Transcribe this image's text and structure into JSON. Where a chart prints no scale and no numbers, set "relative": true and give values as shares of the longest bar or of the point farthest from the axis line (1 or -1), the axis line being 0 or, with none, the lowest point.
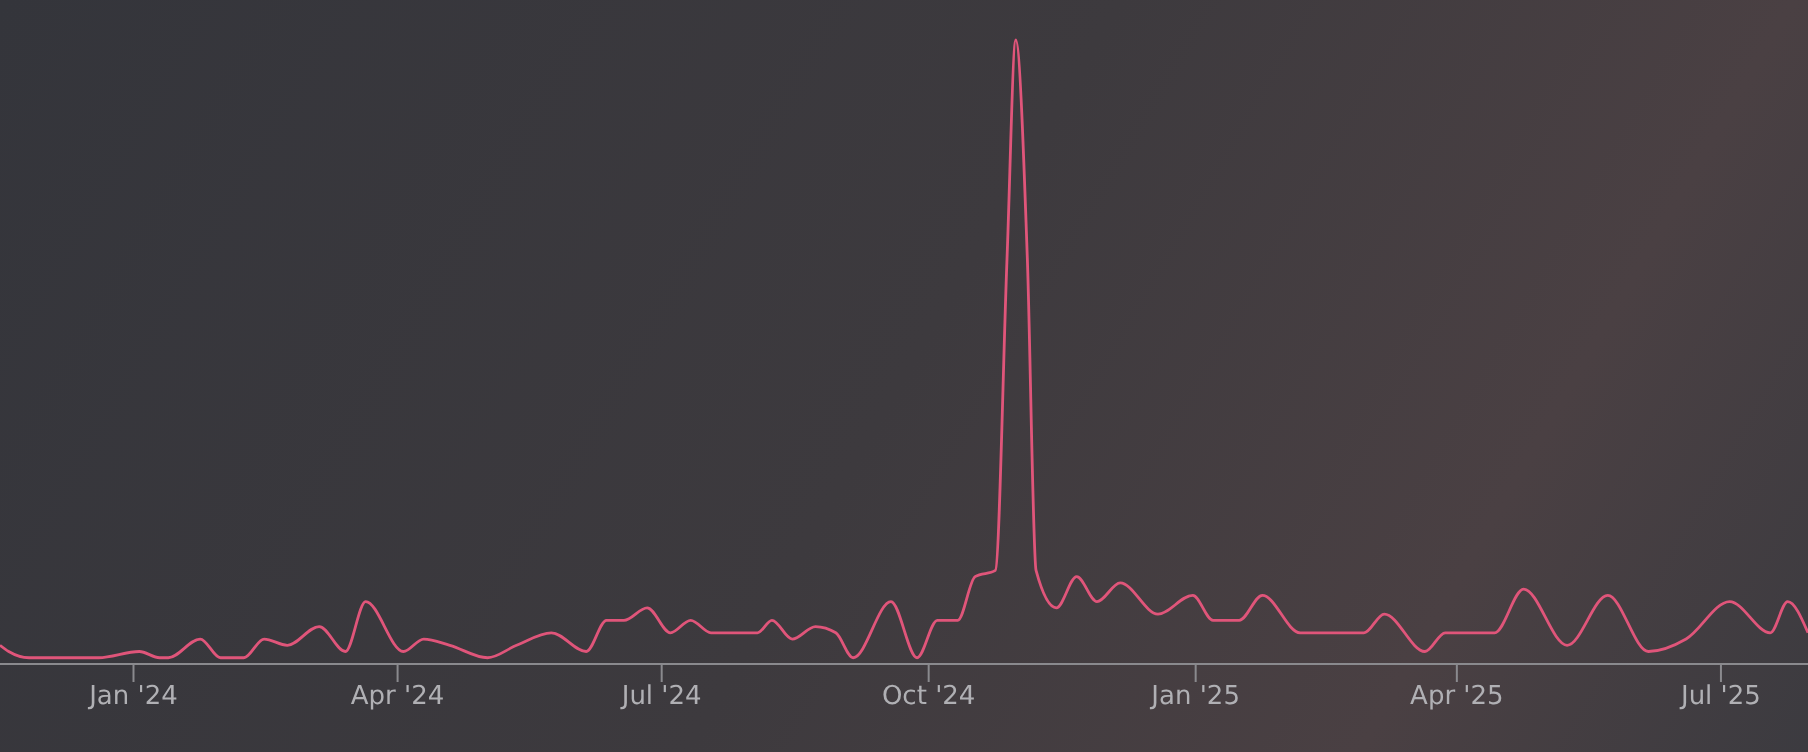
{
  "chart_data": {
    "type": "line",
    "relative": true,
    "x": [
      "2023-11-16",
      "2023-11-19",
      "2023-11-26",
      "2023-12-06",
      "2023-12-20",
      "2024-01-03",
      "2024-01-10",
      "2024-01-13",
      "2024-01-24",
      "2024-01-31",
      "2024-02-08",
      "2024-02-15",
      "2024-02-23",
      "2024-03-05",
      "2024-03-14",
      "2024-03-21",
      "2024-04-03",
      "2024-04-10",
      "2024-04-19",
      "2024-05-02",
      "2024-05-12",
      "2024-05-24",
      "2024-06-05",
      "2024-06-12",
      "2024-06-18",
      "2024-06-26",
      "2024-07-04",
      "2024-07-11",
      "2024-07-18",
      "2024-08-03",
      "2024-08-08",
      "2024-08-15",
      "2024-08-23",
      "2024-08-30",
      "2024-09-05",
      "2024-09-18",
      "2024-09-27",
      "2024-10-04",
      "2024-10-11",
      "2024-10-17",
      "2024-10-24",
      "2024-10-28",
      "2024-10-31",
      "2024-11-04",
      "2024-11-07",
      "2024-11-14",
      "2024-11-21",
      "2024-11-28",
      "2024-12-06",
      "2024-12-19",
      "2024-12-31",
      "2025-01-07",
      "2025-01-16",
      "2025-01-24",
      "2025-02-06",
      "2025-02-21",
      "2025-02-28",
      "2025-03-07",
      "2025-03-21",
      "2025-03-28",
      "2025-04-14",
      "2025-04-24",
      "2025-05-09",
      "2025-05-23",
      "2025-06-06",
      "2025-06-19",
      "2025-07-04",
      "2025-07-18",
      "2025-07-24",
      "2025-07-31"
    ],
    "series": [
      {
        "color": "#e0557a",
        "values": [
          0.03,
          0.02,
          0.01,
          0.01,
          0.01,
          0.02,
          0.01,
          0.01,
          0.04,
          0.01,
          0.01,
          0.04,
          0.03,
          0.06,
          0.02,
          0.1,
          0.02,
          0.04,
          0.03,
          0.01,
          0.03,
          0.05,
          0.02,
          0.07,
          0.07,
          0.09,
          0.05,
          0.07,
          0.05,
          0.05,
          0.07,
          0.04,
          0.06,
          0.05,
          0.01,
          0.1,
          0.01,
          0.07,
          0.07,
          0.14,
          0.15,
          0.65,
          1,
          0.65,
          0.15,
          0.09,
          0.14,
          0.1,
          0.13,
          0.08,
          0.11,
          0.07,
          0.07,
          0.11,
          0.05,
          0.05,
          0.05,
          0.08,
          0.02,
          0.05,
          0.05,
          0.12,
          0.03,
          0.11,
          0.02,
          0.04,
          0.1,
          0.05,
          0.1,
          0.05
        ]
      }
    ],
    "xlim": [
      "2023-11-16",
      "2025-07-31"
    ],
    "xticks": [
      {
        "value": "2024-01",
        "label": "Jan '24"
      },
      {
        "value": "2024-04",
        "label": "Apr '24"
      },
      {
        "value": "2024-07",
        "label": "Jul '24"
      },
      {
        "value": "2024-10",
        "label": "Oct '24"
      },
      {
        "value": "2025-01",
        "label": "Jan '25"
      },
      {
        "value": "2025-04",
        "label": "Apr '25"
      },
      {
        "value": "2025-07",
        "label": "Jul '25"
      }
    ],
    "grid": false,
    "legend": false,
    "marker": "none",
    "line_style": "solid"
  }
}
